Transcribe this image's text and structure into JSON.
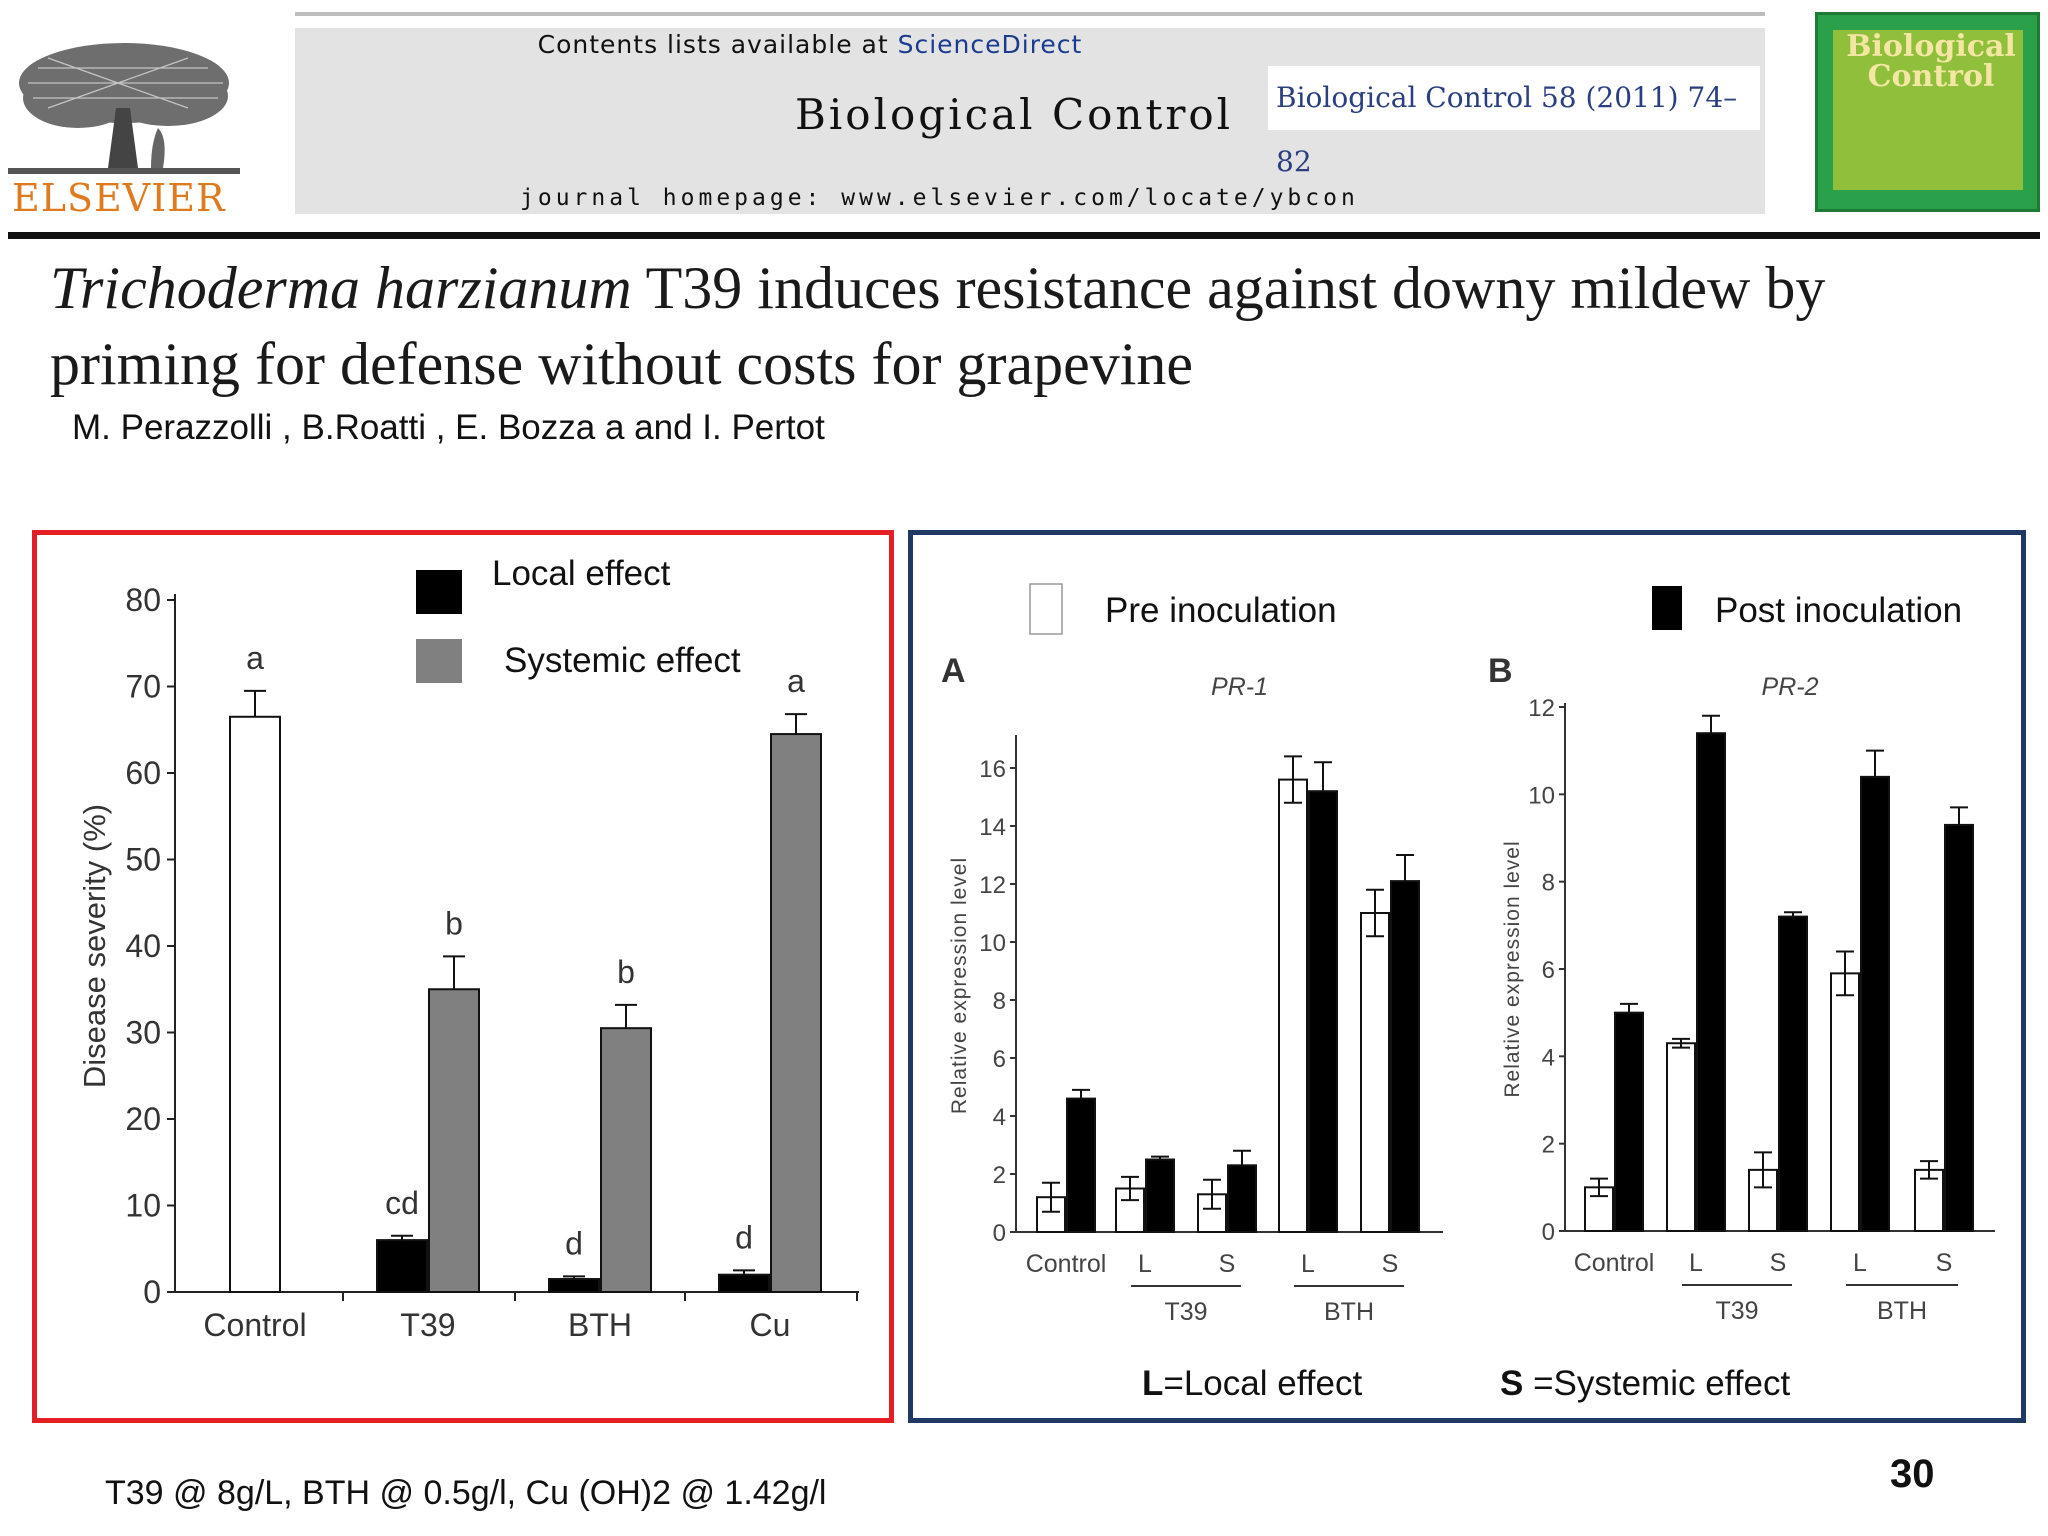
{
  "header": {
    "contents_prefix": "Contents lists available at ",
    "contents_link": "ScienceDirect",
    "journal_name": "Biological Control",
    "citation": "Biological Control 58 (2011) 74–82",
    "homepage": "journal homepage: www.elsevier.com/locate/ybcon",
    "publisher": "ELSEVIER",
    "cover_title_line1": "Biological",
    "cover_title_line2": "Control"
  },
  "paper": {
    "title_italic": "Trichoderma harzianum",
    "title_rest": " T39 induces resistance against downy mildew by priming for defense without costs for grapevine",
    "authors": "M. Perazzolli , B.Roatti , E. Bozza a and  I. Pertot"
  },
  "legend_left": {
    "local": "Local effect",
    "systemic": "Systemic effect"
  },
  "legend_right": {
    "pre": "Pre inoculation",
    "post": "Post inoculation"
  },
  "notes": {
    "l_bold": "L",
    "l_text": "=Local effect",
    "s_bold": "S",
    "s_text": " =Systemic effect"
  },
  "footnote": "T39 @ 8g/L, BTH @ 0.5g/l, Cu (OH)2 @ 1.42g/l",
  "page_number": "30",
  "colors": {
    "local": "#000000",
    "systemic": "#808080",
    "control": "#ffffff",
    "left_border": "#e31e24",
    "right_border": "#1f3864"
  },
  "chart_data": [
    {
      "id": "disease_severity",
      "type": "bar",
      "ylabel": "Disease severity (%)",
      "ylim": [
        0,
        80
      ],
      "yticks": [
        0,
        10,
        20,
        30,
        40,
        50,
        60,
        70,
        80
      ],
      "categories": [
        "Control",
        "T39",
        "BTH",
        "Cu"
      ],
      "series": [
        {
          "name": "Local effect",
          "values": [
            null,
            6.0,
            1.5,
            2.0
          ],
          "errors": [
            null,
            0.5,
            0.3,
            0.5
          ],
          "letters": [
            null,
            "cd",
            "d",
            "d"
          ]
        },
        {
          "name": "Systemic effect",
          "values": [
            null,
            35.0,
            30.5,
            64.5
          ],
          "errors": [
            null,
            3.8,
            2.7,
            2.3
          ],
          "letters": [
            null,
            "b",
            "b",
            "a"
          ]
        }
      ],
      "control": {
        "value": 66.5,
        "error": 3.0,
        "letter": "a"
      }
    },
    {
      "id": "pr1",
      "panel_label": "A",
      "type": "bar",
      "title": "PR-1",
      "ylabel": "Relative expression level",
      "ylim": [
        0,
        17
      ],
      "yticks": [
        0,
        2,
        4,
        6,
        8,
        10,
        12,
        14,
        16
      ],
      "categories": [
        "Control",
        "L",
        "S",
        "L",
        "S"
      ],
      "groups": [
        {
          "label": "T39",
          "span": [
            1,
            2
          ]
        },
        {
          "label": "BTH",
          "span": [
            3,
            4
          ]
        }
      ],
      "series": [
        {
          "name": "Pre inoculation",
          "values": [
            1.2,
            1.5,
            1.3,
            15.6,
            11.0
          ],
          "errors": [
            0.5,
            0.4,
            0.5,
            0.8,
            0.8
          ]
        },
        {
          "name": "Post inoculation",
          "values": [
            4.6,
            2.5,
            2.3,
            15.2,
            12.1
          ],
          "errors": [
            0.3,
            0.1,
            0.5,
            1.0,
            0.9
          ]
        }
      ]
    },
    {
      "id": "pr2",
      "panel_label": "B",
      "type": "bar",
      "title": "PR-2",
      "ylabel": "Relative expression level",
      "ylim": [
        0,
        12
      ],
      "yticks": [
        0,
        2,
        4,
        6,
        8,
        10,
        12
      ],
      "categories": [
        "Control",
        "L",
        "S",
        "L",
        "S"
      ],
      "groups": [
        {
          "label": "T39",
          "span": [
            1,
            2
          ]
        },
        {
          "label": "BTH",
          "span": [
            3,
            4
          ]
        }
      ],
      "series": [
        {
          "name": "Pre inoculation",
          "values": [
            1.0,
            4.3,
            1.4,
            5.9,
            1.4
          ],
          "errors": [
            0.2,
            0.1,
            0.4,
            0.5,
            0.2
          ]
        },
        {
          "name": "Post inoculation",
          "values": [
            5.0,
            11.4,
            7.2,
            10.4,
            9.3
          ],
          "errors": [
            0.2,
            0.4,
            0.1,
            0.6,
            0.4
          ]
        }
      ]
    }
  ]
}
